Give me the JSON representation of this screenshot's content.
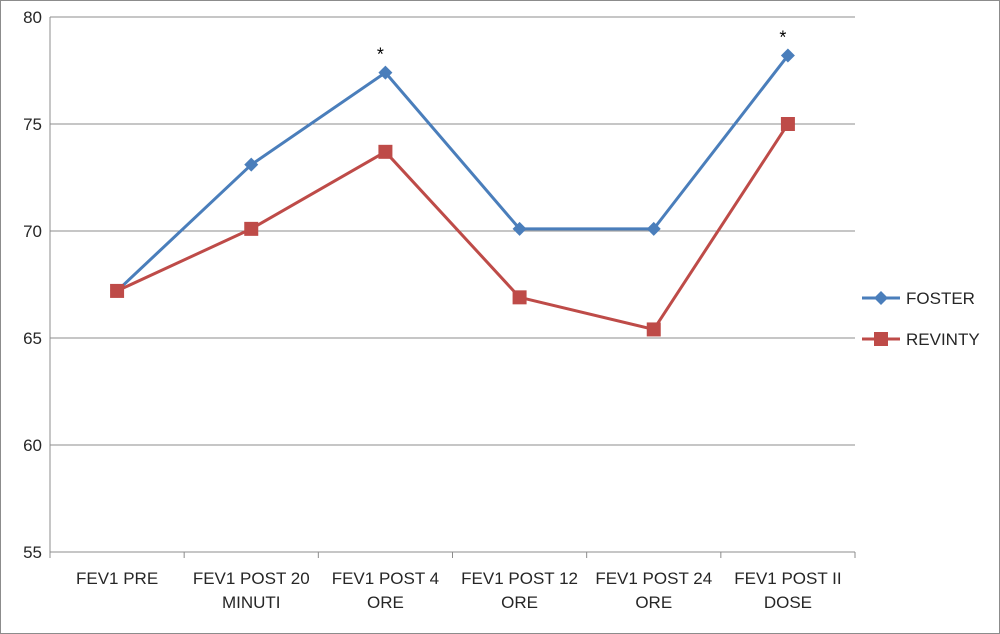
{
  "chart_data": {
    "type": "line",
    "categories": [
      [
        "FEV1 PRE"
      ],
      [
        "FEV1 POST 20",
        "MINUTI"
      ],
      [
        "FEV1 POST 4",
        "ORE"
      ],
      [
        "FEV1 POST 12",
        "ORE"
      ],
      [
        "FEV1 POST 24",
        "ORE"
      ],
      [
        "FEV1 POST II",
        "DOSE"
      ]
    ],
    "series": [
      {
        "name": "FOSTER",
        "color": "#4a7ebb",
        "marker": "diamond",
        "values": [
          67.2,
          73.1,
          77.4,
          70.1,
          70.1,
          78.2
        ]
      },
      {
        "name": "REVINTY",
        "color": "#be4b48",
        "marker": "square",
        "values": [
          67.2,
          70.1,
          73.7,
          66.9,
          65.4,
          75.0
        ]
      }
    ],
    "ylim": [
      55,
      80
    ],
    "yticks": [
      55,
      60,
      65,
      70,
      75,
      80
    ],
    "grid": true,
    "legend": "right",
    "annotations": [
      {
        "text": "*",
        "category_index": 2
      },
      {
        "text": "*",
        "category_index": 5
      }
    ],
    "title": "",
    "xlabel": "",
    "ylabel": ""
  }
}
